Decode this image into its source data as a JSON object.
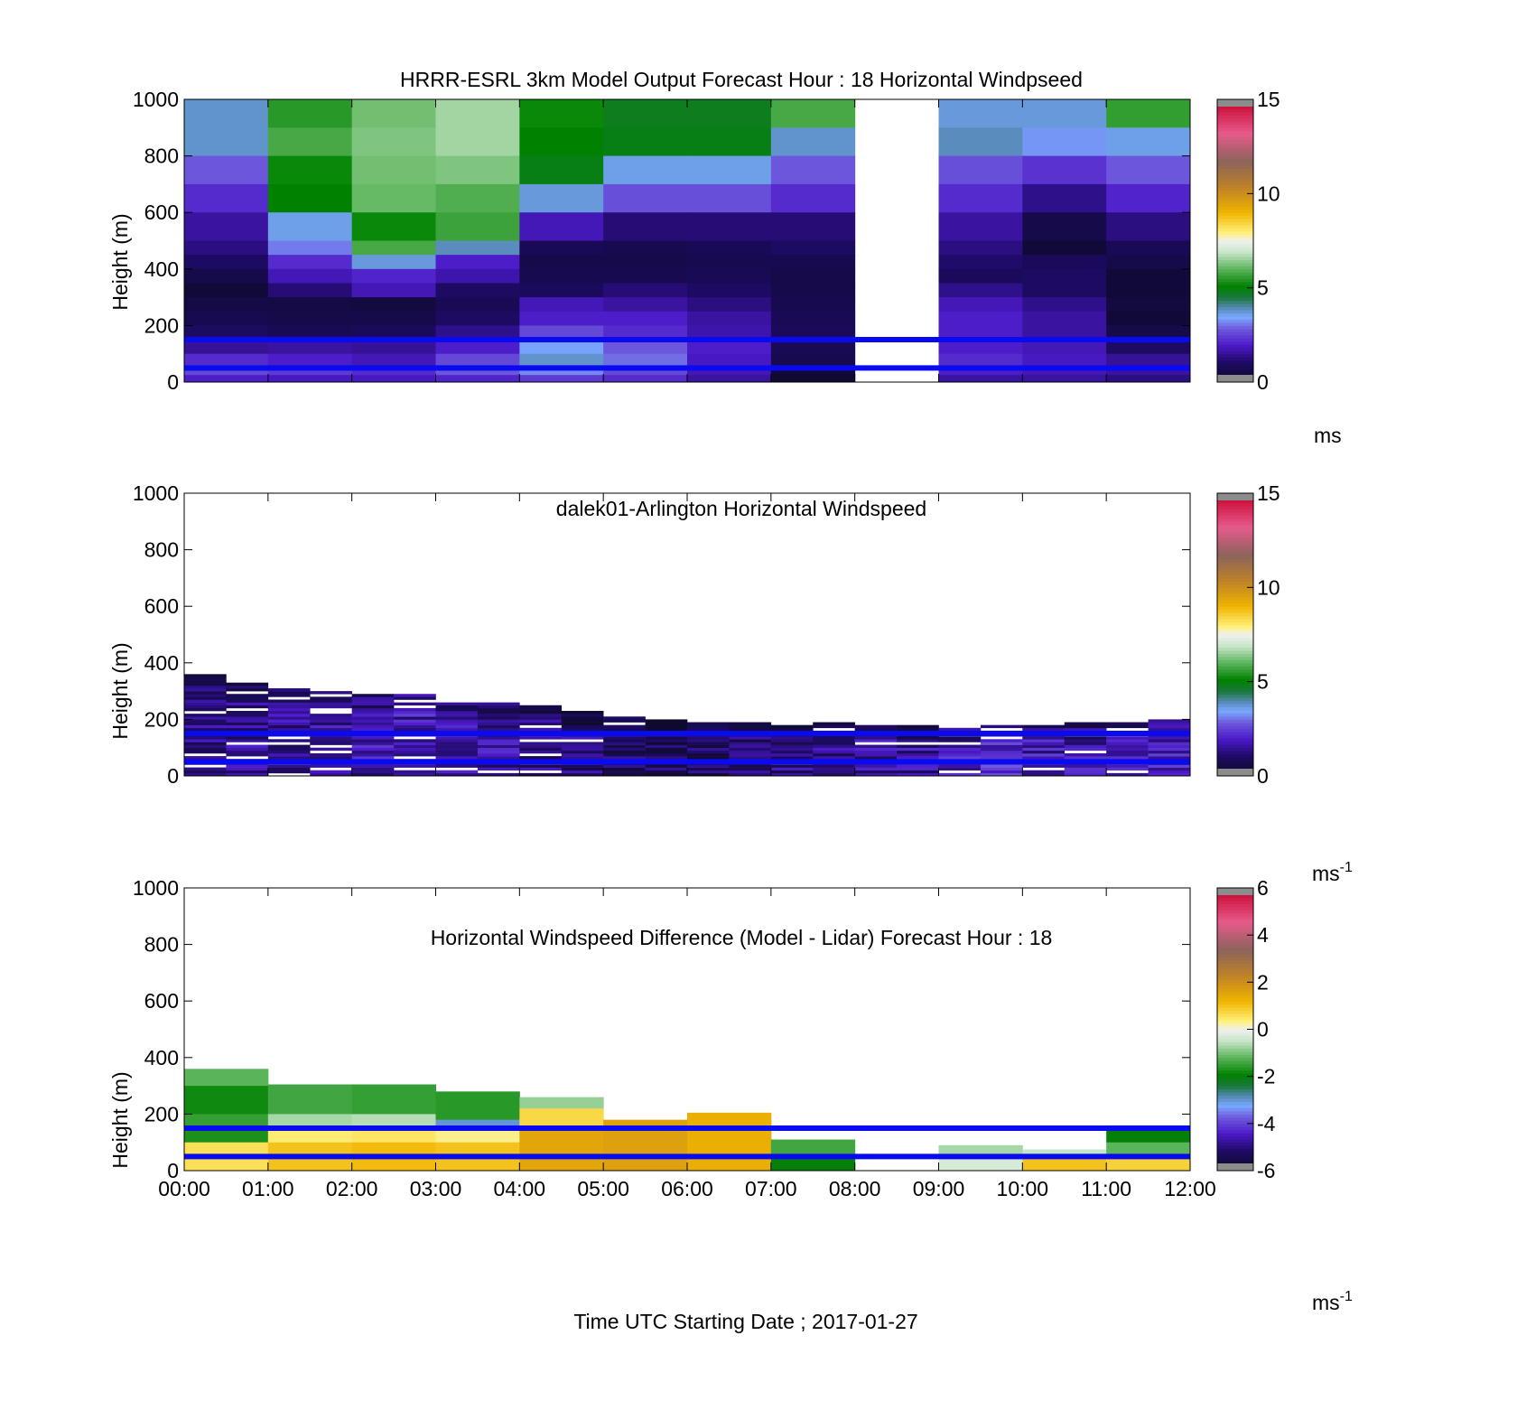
{
  "chart_data": [
    {
      "type": "heatmap",
      "title": "HRRR-ESRL 3km Model Output   Forecast Hour : 18 Horizontal Windpseed",
      "ylabel": "Height (m)",
      "xlabel": "",
      "ylim": [
        0,
        1000
      ],
      "xlim": [
        0,
        12
      ],
      "yticks": [
        "0",
        "200",
        "400",
        "600",
        "800",
        "1000"
      ],
      "x_tick_labels": [],
      "colorbar": {
        "min": 0,
        "max": 15,
        "ticks": [
          "0",
          "5",
          "10",
          "15"
        ],
        "unit": "ms",
        "unit_sup": ""
      },
      "reference_lines_m": [
        150,
        50
      ],
      "reference_line_color": "#0a0af0",
      "columns_note": "hourly columns 00:00-12:00, hour 8-9 missing",
      "rows_m": [
        1000,
        900,
        800,
        700,
        600,
        500,
        450,
        400,
        350,
        300,
        250,
        200,
        150,
        100,
        50,
        25
      ],
      "grid": [
        [
          3.8,
          5.5,
          6.2,
          6.6,
          5.2,
          4.8,
          4.8,
          5.8,
          null,
          3.7,
          3.7,
          5.6
        ],
        [
          3.8,
          5.8,
          6.3,
          6.6,
          5.1,
          4.9,
          4.9,
          3.8,
          null,
          3.9,
          3.3,
          3.6
        ],
        [
          2.8,
          5.2,
          6.2,
          6.3,
          4.9,
          3.6,
          3.6,
          2.8,
          null,
          2.7,
          2.3,
          2.8
        ],
        [
          2.2,
          5.1,
          6.1,
          5.9,
          3.7,
          2.7,
          2.7,
          2.2,
          null,
          2.2,
          1.4,
          2.1
        ],
        [
          1.6,
          3.6,
          5.2,
          5.7,
          1.8,
          1.2,
          1.2,
          1.2,
          null,
          1.6,
          0.6,
          1.3
        ],
        [
          1.3,
          3.1,
          5.8,
          3.9,
          0.8,
          0.7,
          0.8,
          1.0,
          null,
          1.3,
          0.3,
          0.8
        ],
        [
          1.0,
          2.2,
          3.7,
          2.0,
          0.6,
          0.6,
          0.7,
          0.7,
          null,
          1.1,
          0.9,
          0.6
        ],
        [
          0.6,
          1.8,
          2.1,
          1.7,
          0.7,
          0.7,
          0.8,
          0.6,
          null,
          0.9,
          1.0,
          0.3
        ],
        [
          0.3,
          1.2,
          1.8,
          1.0,
          0.9,
          1.2,
          1.0,
          0.6,
          null,
          1.4,
          1.0,
          0.3
        ],
        [
          0.5,
          0.5,
          0.4,
          0.8,
          1.8,
          1.6,
          1.3,
          0.7,
          null,
          1.8,
          1.4,
          0.4
        ],
        [
          0.7,
          0.6,
          0.6,
          1.0,
          2.0,
          2.0,
          1.6,
          0.8,
          null,
          2.0,
          1.6,
          0.3
        ],
        [
          1.0,
          0.8,
          0.9,
          1.4,
          2.6,
          2.2,
          1.7,
          0.9,
          null,
          2.0,
          1.6,
          0.6
        ],
        [
          1.5,
          1.6,
          1.5,
          2.0,
          3.4,
          2.8,
          2.0,
          0.8,
          null,
          2.0,
          1.8,
          1.0
        ],
        [
          2.2,
          2.0,
          1.8,
          2.6,
          3.8,
          3.0,
          1.9,
          0.7,
          null,
          2.2,
          1.9,
          1.5
        ],
        [
          2.6,
          2.4,
          2.2,
          2.8,
          3.2,
          2.6,
          1.8,
          0.3,
          null,
          2.0,
          1.8,
          1.6
        ],
        [
          2.0,
          1.9,
          1.9,
          2.1,
          2.4,
          2.2,
          1.6,
          0.2,
          null,
          1.6,
          1.6,
          1.3
        ]
      ]
    },
    {
      "type": "heatmap",
      "title": "dalek01-Arlington  Horizontal Windspeed",
      "ylabel": "Height (m)",
      "xlabel": "",
      "ylim": [
        0,
        1000
      ],
      "xlim": [
        0,
        12
      ],
      "yticks": [
        "0",
        "200",
        "400",
        "600",
        "800",
        "1000"
      ],
      "x_tick_labels": [],
      "colorbar": {
        "min": 0,
        "max": 15,
        "ticks": [
          "0",
          "5",
          "10",
          "15"
        ],
        "unit": "ms",
        "unit_sup": "-1"
      },
      "reference_lines_m": [
        150,
        50
      ],
      "reference_line_color": "#0a0af0",
      "profile_top_m": [
        360,
        330,
        310,
        300,
        290,
        285,
        270,
        260,
        250,
        230,
        210,
        200,
        200,
        190,
        190,
        190,
        180,
        175,
        170,
        175,
        180,
        185,
        190,
        195
      ],
      "profile_mean_ms": [
        1.3,
        1.4,
        1.5,
        1.6,
        1.7,
        1.8,
        1.8,
        1.6,
        1.4,
        1.2,
        1.0,
        0.9,
        0.9,
        1.1,
        1.3,
        1.4,
        1.5,
        1.6,
        2.0,
        2.2,
        1.8,
        1.7,
        1.8,
        1.9
      ]
    },
    {
      "type": "heatmap",
      "title": "Horizontal Windspeed Difference (Model - Lidar) Forecast Hour : 18",
      "ylabel": "Height (m)",
      "xlabel": "Time UTC  Starting Date ; 2017-01-27",
      "ylim": [
        0,
        1000
      ],
      "xlim": [
        0,
        12
      ],
      "yticks": [
        "0",
        "200",
        "400",
        "600",
        "800",
        "1000"
      ],
      "x_tick_labels": [
        "00:00",
        "01:00",
        "02:00",
        "03:00",
        "04:00",
        "05:00",
        "06:00",
        "07:00",
        "08:00",
        "09:00",
        "10:00",
        "11:00",
        "12:00"
      ],
      "colorbar": {
        "min": -6,
        "max": 6,
        "ticks": [
          "-6",
          "-4",
          "-2",
          "0",
          "2",
          "4",
          "6"
        ],
        "unit": "ms",
        "unit_sup": "-1"
      },
      "reference_lines_m": [
        150,
        50
      ],
      "reference_line_color": "#0a0af0",
      "columns": [
        {
          "top_m": 360,
          "segments": [
            [
              300,
              360,
              -1.2
            ],
            [
              200,
              300,
              -1.8
            ],
            [
              150,
              200,
              -1.5
            ],
            [
              100,
              150,
              -1.7
            ],
            [
              0,
              100,
              0.6
            ]
          ]
        },
        {
          "top_m": 305,
          "segments": [
            [
              200,
              305,
              -1.4
            ],
            [
              150,
              200,
              -0.7
            ],
            [
              100,
              150,
              0.4
            ],
            [
              0,
              100,
              1.0
            ]
          ]
        },
        {
          "top_m": 305,
          "segments": [
            [
              200,
              305,
              -1.5
            ],
            [
              150,
              200,
              -0.6
            ],
            [
              100,
              150,
              0.5
            ],
            [
              0,
              100,
              1.1
            ]
          ]
        },
        {
          "top_m": 280,
          "segments": [
            [
              180,
              280,
              -1.6
            ],
            [
              150,
              180,
              -3.0
            ],
            [
              100,
              150,
              0.3
            ],
            [
              0,
              100,
              1.0
            ]
          ]
        },
        {
          "top_m": 260,
          "segments": [
            [
              220,
              260,
              -0.8
            ],
            [
              150,
              220,
              0.7
            ],
            [
              0,
              150,
              1.5
            ]
          ]
        },
        {
          "top_m": 180,
          "segments": [
            [
              0,
              180,
              1.6
            ]
          ]
        },
        {
          "top_m": 205,
          "segments": [
            [
              0,
              205,
              1.3
            ]
          ]
        },
        {
          "top_m": 110,
          "segments": [
            [
              50,
              110,
              -1.4
            ],
            [
              0,
              50,
              -2.0
            ]
          ]
        },
        {
          "top_m": 0,
          "segments": []
        },
        {
          "top_m": 90,
          "segments": [
            [
              40,
              90,
              -0.7
            ],
            [
              0,
              40,
              -0.3
            ]
          ]
        },
        {
          "top_m": 75,
          "segments": [
            [
              40,
              75,
              -0.5
            ],
            [
              0,
              40,
              1.0
            ]
          ]
        },
        {
          "top_m": 160,
          "segments": [
            [
              100,
              160,
              -2.0
            ],
            [
              50,
              100,
              -1.2
            ],
            [
              0,
              50,
              0.8
            ]
          ]
        }
      ]
    }
  ]
}
